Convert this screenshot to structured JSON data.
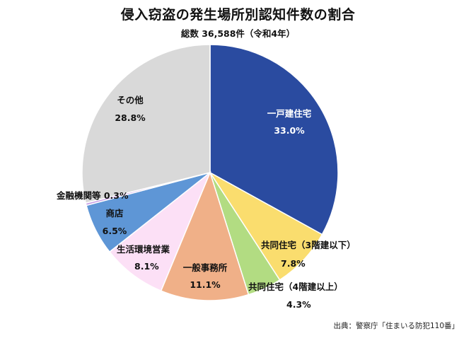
{
  "chart_data": {
    "type": "pie",
    "title": "侵入窃盗の発生場所別認知件数の割合",
    "subtitle": "総数 36,588件（令和4年）",
    "source": "出典：警察庁「住まいる防犯110番」",
    "slices": [
      {
        "label": "一戸建住宅",
        "value": 33.0,
        "display": "33.0%",
        "color": "#2A4BA0",
        "text_color": "#ffffff"
      },
      {
        "label": "共同住宅（3階建以下）",
        "value": 7.8,
        "display": "7.8%",
        "color": "#FADD6E",
        "text_color": "#111111"
      },
      {
        "label": "共同住宅（4階建以上）",
        "value": 4.3,
        "display": "4.3%",
        "color": "#B2DC82",
        "text_color": "#111111"
      },
      {
        "label": "一般事務所",
        "value": 11.1,
        "display": "11.1%",
        "color": "#F0B088",
        "text_color": "#111111"
      },
      {
        "label": "生活環境営業",
        "value": 8.1,
        "display": "8.1%",
        "color": "#FCE0F6",
        "text_color": "#111111"
      },
      {
        "label": "商店",
        "value": 6.5,
        "display": "6.5%",
        "color": "#5E96D6",
        "text_color": "#111111"
      },
      {
        "label": "金融機関等",
        "value": 0.3,
        "display": "0.3%",
        "color": "#C9A0E6",
        "text_color": "#111111"
      },
      {
        "label": "その他",
        "value": 28.8,
        "display": "28.8%",
        "color": "#D9D9D9",
        "text_color": "#111111"
      }
    ]
  }
}
